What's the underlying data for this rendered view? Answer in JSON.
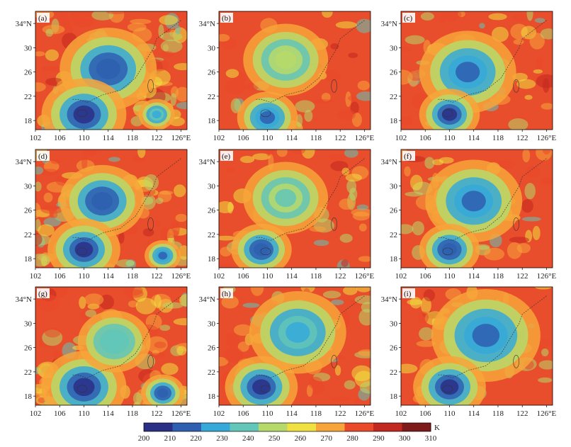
{
  "chart_data": {
    "type": "heatmap",
    "layout": "3x3 panels of satellite brightness temperature maps",
    "x_ticks": [
      "102",
      "106",
      "110",
      "114",
      "118",
      "122",
      "126°E"
    ],
    "y_ticks": [
      "34°N",
      "30",
      "26",
      "22",
      "18"
    ],
    "xlim": [
      102,
      127
    ],
    "ylim": [
      16.5,
      36
    ],
    "colorbar": {
      "unit": "K",
      "ticks": [
        "200",
        "210",
        "220",
        "230",
        "240",
        "250",
        "260",
        "270",
        "280",
        "290",
        "300",
        "310"
      ],
      "range": [
        200,
        310
      ],
      "colors": [
        "#2b2f86",
        "#2f5fb0",
        "#36a9d8",
        "#62c6b8",
        "#b6d96a",
        "#f0e040",
        "#f7a43a",
        "#ea4a2a",
        "#c2281f",
        "#7e1a1a"
      ]
    },
    "panels": [
      {
        "label": "(a)",
        "cold_regions": [
          {
            "lon": 114,
            "lat": 26.5,
            "r": 4,
            "t": 212
          },
          {
            "lon": 110,
            "lat": 19,
            "r": 3.5,
            "t": 208
          },
          {
            "lon": 122,
            "lat": 19,
            "r": 1.5,
            "t": 225
          }
        ],
        "cloud_cover": 0.75
      },
      {
        "label": "(b)",
        "cold_regions": [
          {
            "lon": 113,
            "lat": 28,
            "r": 3.5,
            "t": 245
          },
          {
            "lon": 110,
            "lat": 18.5,
            "r": 2.5,
            "t": 215
          }
        ],
        "cloud_cover": 0.3
      },
      {
        "label": "(c)",
        "cold_regions": [
          {
            "lon": 113,
            "lat": 26,
            "r": 4,
            "t": 215
          },
          {
            "lon": 110,
            "lat": 19,
            "r": 2.5,
            "t": 210
          }
        ],
        "cloud_cover": 0.45
      },
      {
        "label": "(d)",
        "cold_regions": [
          {
            "lon": 113,
            "lat": 27.5,
            "r": 3.5,
            "t": 212
          },
          {
            "lon": 110,
            "lat": 19.5,
            "r": 3,
            "t": 210
          },
          {
            "lon": 123,
            "lat": 18.5,
            "r": 1.5,
            "t": 215
          }
        ],
        "cloud_cover": 0.7
      },
      {
        "label": "(e)",
        "cold_regions": [
          {
            "lon": 113,
            "lat": 28,
            "r": 3.5,
            "t": 242
          },
          {
            "lon": 109,
            "lat": 19.5,
            "r": 2.5,
            "t": 212
          }
        ],
        "cloud_cover": 0.35
      },
      {
        "label": "(f)",
        "cold_regions": [
          {
            "lon": 114,
            "lat": 27.5,
            "r": 4,
            "t": 215
          },
          {
            "lon": 110,
            "lat": 19.5,
            "r": 2.5,
            "t": 212
          }
        ],
        "cloud_cover": 0.45
      },
      {
        "label": "(g)",
        "cold_regions": [
          {
            "lon": 110,
            "lat": 19.5,
            "r": 3.5,
            "t": 205
          },
          {
            "lon": 123,
            "lat": 18.5,
            "r": 1.8,
            "t": 212
          },
          {
            "lon": 115,
            "lat": 27,
            "r": 3,
            "t": 235
          }
        ],
        "cloud_cover": 0.7
      },
      {
        "label": "(h)",
        "cold_regions": [
          {
            "lon": 115,
            "lat": 28.5,
            "r": 4,
            "t": 225
          },
          {
            "lon": 109,
            "lat": 19.5,
            "r": 3,
            "t": 210
          }
        ],
        "cloud_cover": 0.5
      },
      {
        "label": "(i)",
        "cold_regions": [
          {
            "lon": 116,
            "lat": 28,
            "r": 4.5,
            "t": 215
          },
          {
            "lon": 110,
            "lat": 19.5,
            "r": 3,
            "t": 208
          }
        ],
        "cloud_cover": 0.45
      }
    ]
  }
}
